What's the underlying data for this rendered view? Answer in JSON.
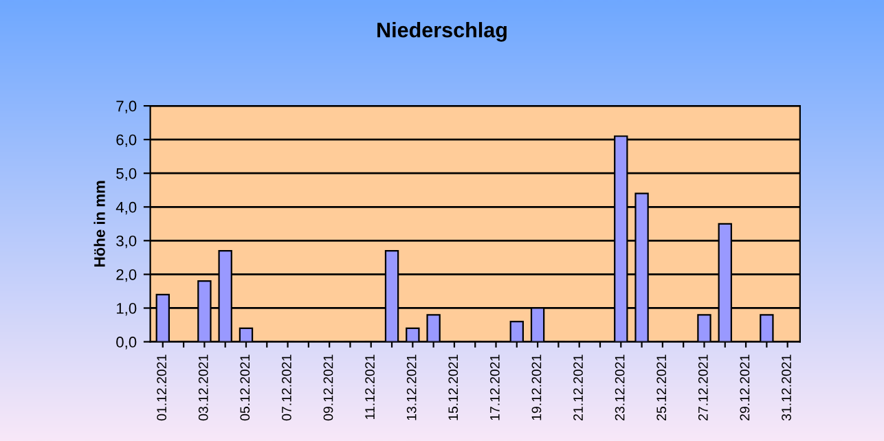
{
  "chart_data": {
    "type": "bar",
    "title": "Niederschlag",
    "ylabel": "Höhe in mm",
    "categories": [
      "01.12.2021",
      null,
      "03.12.2021",
      null,
      "05.12.2021",
      null,
      "07.12.2021",
      null,
      "09.12.2021",
      null,
      "11.12.2021",
      null,
      "13.12.2021",
      null,
      "15.12.2021",
      null,
      "17.12.2021",
      null,
      "19.12.2021",
      null,
      "21.12.2021",
      null,
      "23.12.2021",
      null,
      "25.12.2021",
      null,
      "27.12.2021",
      null,
      "29.12.2021",
      null,
      "31.12.2021"
    ],
    "values": [
      1.4,
      0,
      1.8,
      2.7,
      0.4,
      0,
      0,
      0,
      0,
      0,
      0,
      2.7,
      0.4,
      0.8,
      0,
      0,
      0,
      0.6,
      1.0,
      0,
      0,
      0,
      6.1,
      4.4,
      0,
      0,
      0.8,
      3.5,
      0,
      0.8,
      0
    ],
    "color": "#9999ff",
    "ylim": [
      0,
      7
    ],
    "yticks": [
      {
        "value": 0,
        "label": "0,0"
      },
      {
        "value": 1,
        "label": "1,0"
      },
      {
        "value": 2,
        "label": "2,0"
      },
      {
        "value": 3,
        "label": "3,0"
      },
      {
        "value": 4,
        "label": "4,0"
      },
      {
        "value": 5,
        "label": "5,0"
      },
      {
        "value": 6,
        "label": "6,0"
      },
      {
        "value": 7,
        "label": "7,0"
      }
    ],
    "grid": "y",
    "legend": false
  }
}
